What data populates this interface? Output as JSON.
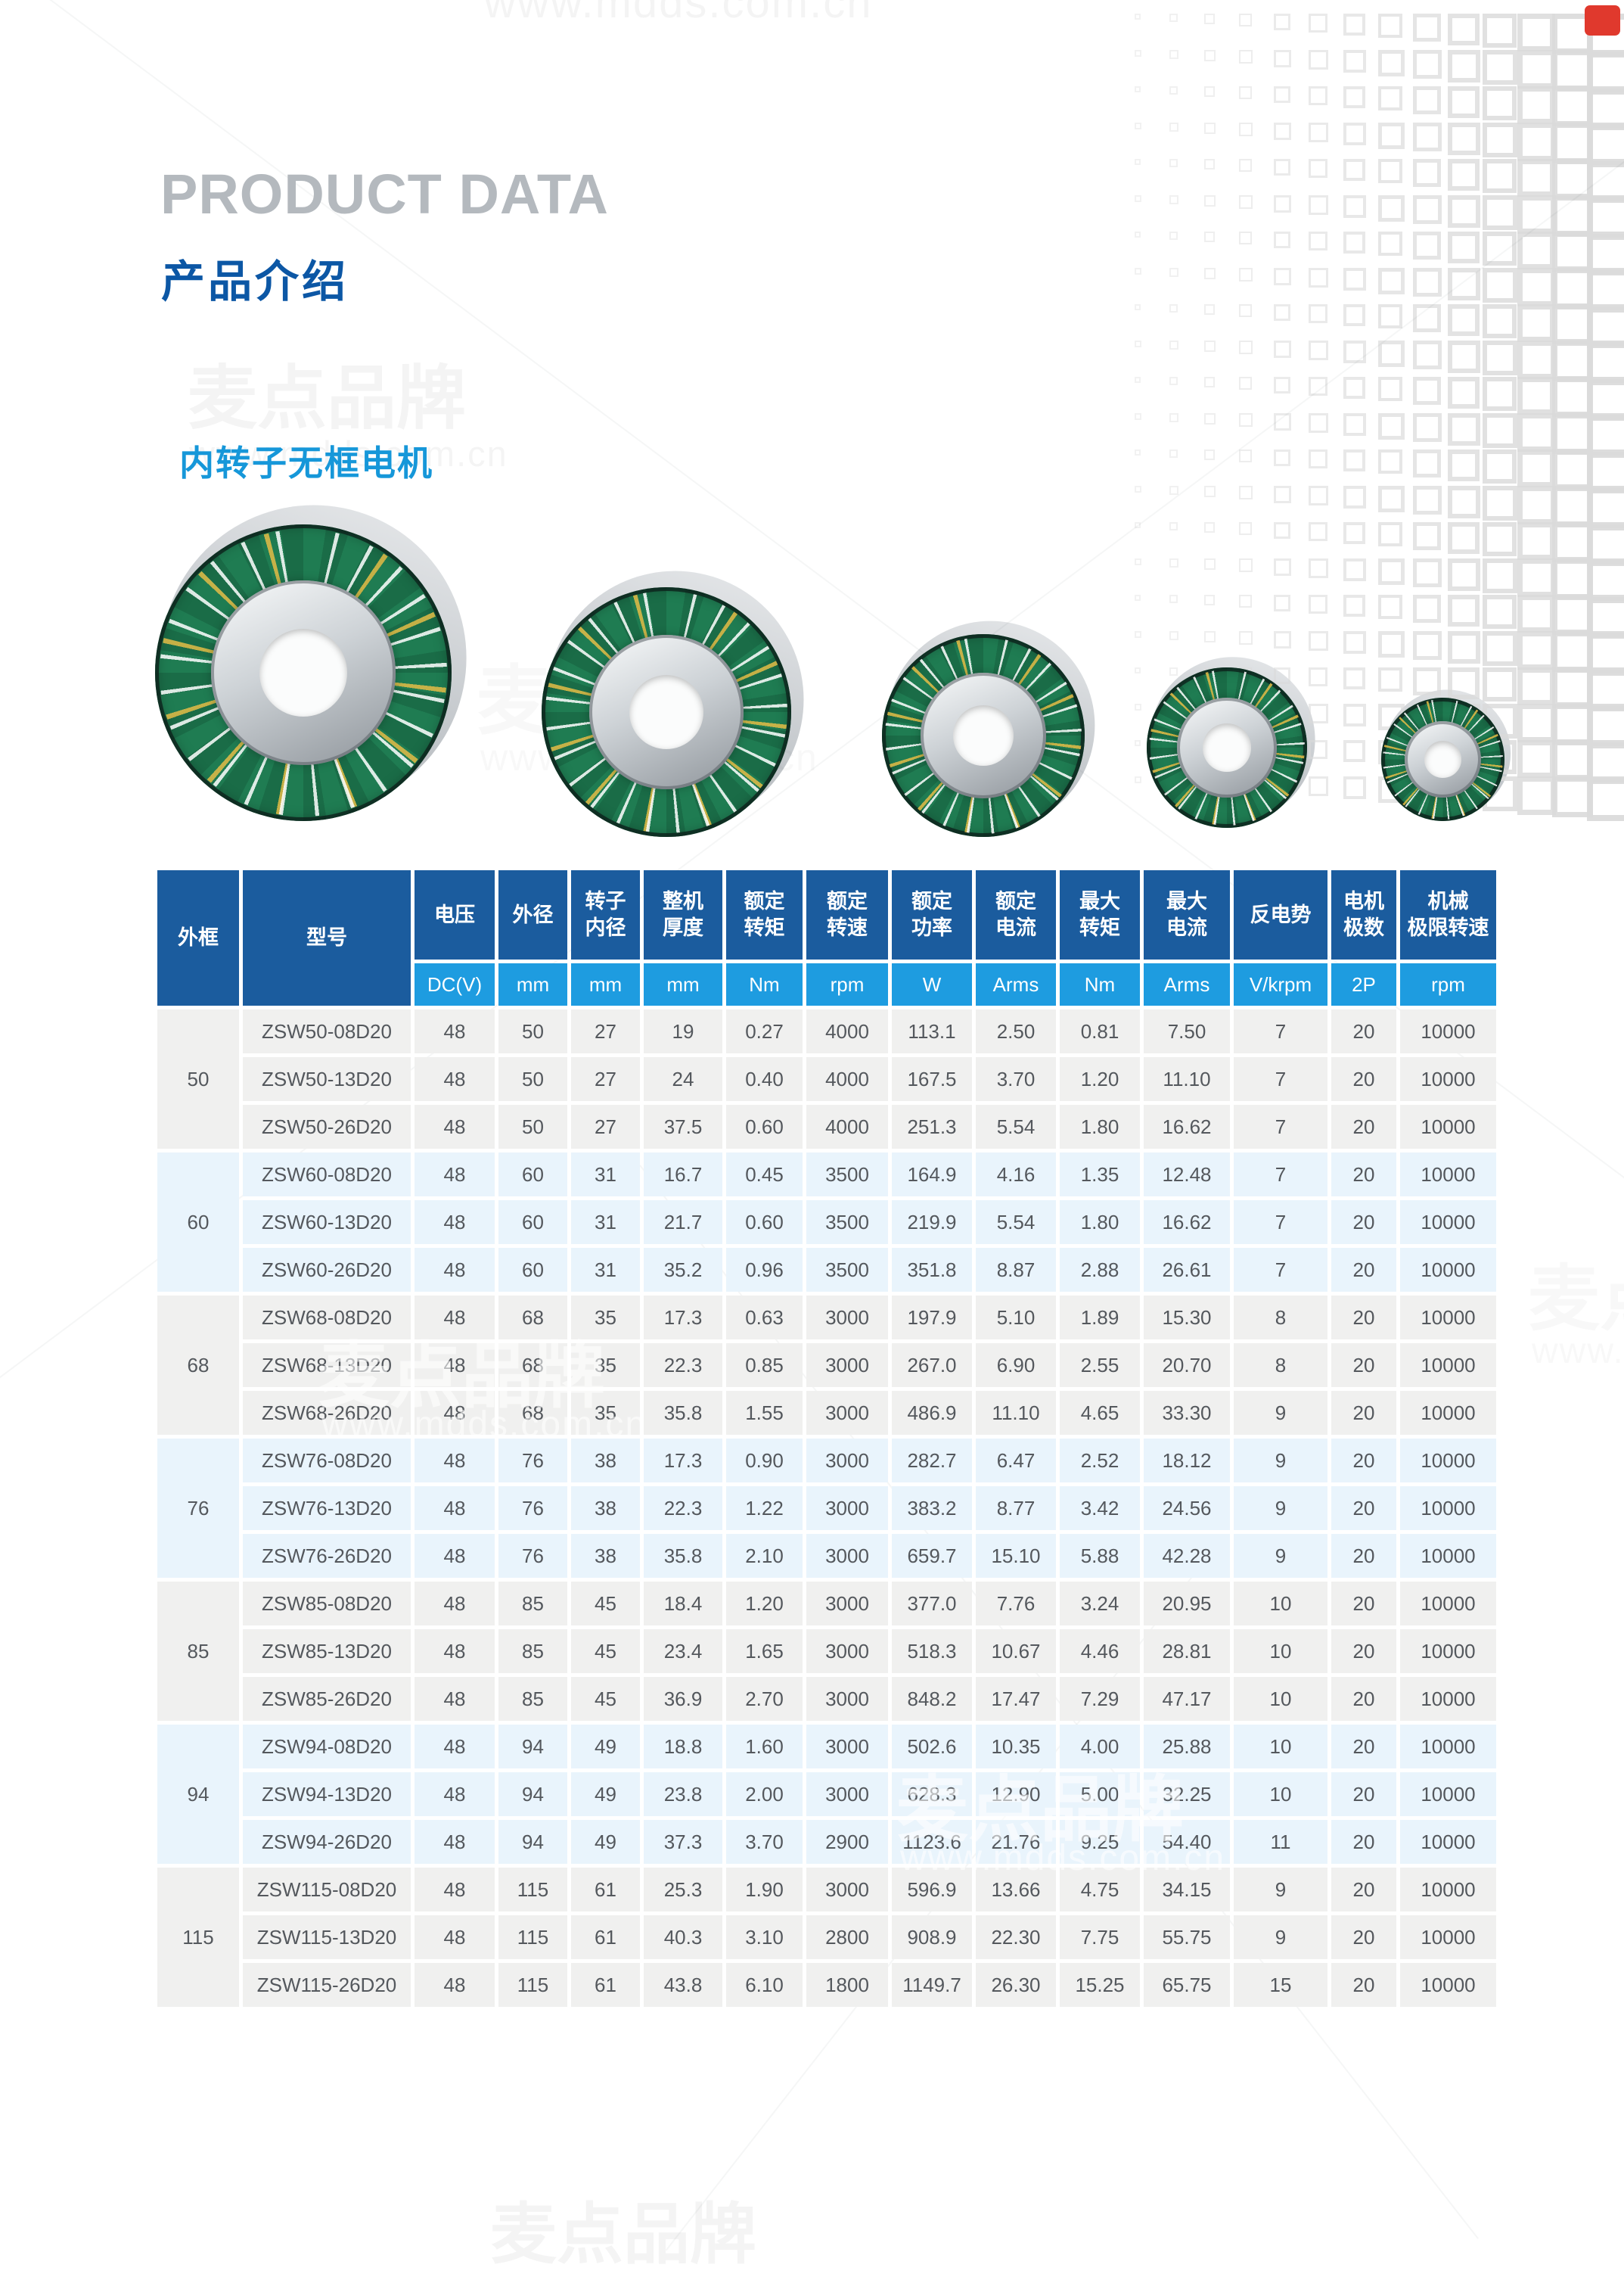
{
  "page": {
    "title_en": "PRODUCT DATA",
    "title_zh": "产品介绍",
    "section_title": "内转子无框电机",
    "watermark_brand": "麦点品牌",
    "watermark_url": "www.mdds.com.cn"
  },
  "colors": {
    "header_dark_blue": "#1b5c9e",
    "header_unit_blue": "#1e9ce0",
    "section_title_blue": "#1697d9",
    "title_zh_blue": "#0c57a5",
    "title_en_gray": "#b4b9be",
    "row_gray": "#f0f0ef",
    "row_light_blue": "#e9f4fc",
    "cell_text": "#54585d",
    "accent_red": "#e0392d",
    "pcb_green": "#1f7c52"
  },
  "table": {
    "header": {
      "col_frame": "外框",
      "col_model": "型号",
      "cols": [
        {
          "label": "电压",
          "unit": "DC(V)"
        },
        {
          "label": "外径",
          "unit": "mm"
        },
        {
          "label": "转子\n内径",
          "unit": "mm"
        },
        {
          "label": "整机\n厚度",
          "unit": "mm"
        },
        {
          "label": "额定\n转矩",
          "unit": "Nm"
        },
        {
          "label": "额定\n转速",
          "unit": "rpm"
        },
        {
          "label": "额定\n功率",
          "unit": "W"
        },
        {
          "label": "额定\n电流",
          "unit": "Arms"
        },
        {
          "label": "最大\n转矩",
          "unit": "Nm"
        },
        {
          "label": "最大\n电流",
          "unit": "Arms"
        },
        {
          "label": "反电势",
          "unit": "V/krpm"
        },
        {
          "label": "电机\n极数",
          "unit": "2P"
        },
        {
          "label": "机械\n极限转速",
          "unit": "rpm"
        }
      ]
    },
    "groups": [
      {
        "frame": "50",
        "rows": [
          {
            "model": "ZSW50-08D20",
            "values": [
              "48",
              "50",
              "27",
              "19",
              "0.27",
              "4000",
              "113.1",
              "2.50",
              "0.81",
              "7.50",
              "7",
              "20",
              "10000"
            ]
          },
          {
            "model": "ZSW50-13D20",
            "values": [
              "48",
              "50",
              "27",
              "24",
              "0.40",
              "4000",
              "167.5",
              "3.70",
              "1.20",
              "11.10",
              "7",
              "20",
              "10000"
            ]
          },
          {
            "model": "ZSW50-26D20",
            "values": [
              "48",
              "50",
              "27",
              "37.5",
              "0.60",
              "4000",
              "251.3",
              "5.54",
              "1.80",
              "16.62",
              "7",
              "20",
              "10000"
            ]
          }
        ]
      },
      {
        "frame": "60",
        "rows": [
          {
            "model": "ZSW60-08D20",
            "values": [
              "48",
              "60",
              "31",
              "16.7",
              "0.45",
              "3500",
              "164.9",
              "4.16",
              "1.35",
              "12.48",
              "7",
              "20",
              "10000"
            ]
          },
          {
            "model": "ZSW60-13D20",
            "values": [
              "48",
              "60",
              "31",
              "21.7",
              "0.60",
              "3500",
              "219.9",
              "5.54",
              "1.80",
              "16.62",
              "7",
              "20",
              "10000"
            ]
          },
          {
            "model": "ZSW60-26D20",
            "values": [
              "48",
              "60",
              "31",
              "35.2",
              "0.96",
              "3500",
              "351.8",
              "8.87",
              "2.88",
              "26.61",
              "7",
              "20",
              "10000"
            ]
          }
        ]
      },
      {
        "frame": "68",
        "rows": [
          {
            "model": "ZSW68-08D20",
            "values": [
              "48",
              "68",
              "35",
              "17.3",
              "0.63",
              "3000",
              "197.9",
              "5.10",
              "1.89",
              "15.30",
              "8",
              "20",
              "10000"
            ]
          },
          {
            "model": "ZSW68-13D20",
            "values": [
              "48",
              "68",
              "35",
              "22.3",
              "0.85",
              "3000",
              "267.0",
              "6.90",
              "2.55",
              "20.70",
              "8",
              "20",
              "10000"
            ]
          },
          {
            "model": "ZSW68-26D20",
            "values": [
              "48",
              "68",
              "35",
              "35.8",
              "1.55",
              "3000",
              "486.9",
              "11.10",
              "4.65",
              "33.30",
              "9",
              "20",
              "10000"
            ]
          }
        ]
      },
      {
        "frame": "76",
        "rows": [
          {
            "model": "ZSW76-08D20",
            "values": [
              "48",
              "76",
              "38",
              "17.3",
              "0.90",
              "3000",
              "282.7",
              "6.47",
              "2.52",
              "18.12",
              "9",
              "20",
              "10000"
            ]
          },
          {
            "model": "ZSW76-13D20",
            "values": [
              "48",
              "76",
              "38",
              "22.3",
              "1.22",
              "3000",
              "383.2",
              "8.77",
              "3.42",
              "24.56",
              "9",
              "20",
              "10000"
            ]
          },
          {
            "model": "ZSW76-26D20",
            "values": [
              "48",
              "76",
              "38",
              "35.8",
              "2.10",
              "3000",
              "659.7",
              "15.10",
              "5.88",
              "42.28",
              "9",
              "20",
              "10000"
            ]
          }
        ]
      },
      {
        "frame": "85",
        "rows": [
          {
            "model": "ZSW85-08D20",
            "values": [
              "48",
              "85",
              "45",
              "18.4",
              "1.20",
              "3000",
              "377.0",
              "7.76",
              "3.24",
              "20.95",
              "10",
              "20",
              "10000"
            ]
          },
          {
            "model": "ZSW85-13D20",
            "values": [
              "48",
              "85",
              "45",
              "23.4",
              "1.65",
              "3000",
              "518.3",
              "10.67",
              "4.46",
              "28.81",
              "10",
              "20",
              "10000"
            ]
          },
          {
            "model": "ZSW85-26D20",
            "values": [
              "48",
              "85",
              "45",
              "36.9",
              "2.70",
              "3000",
              "848.2",
              "17.47",
              "7.29",
              "47.17",
              "10",
              "20",
              "10000"
            ]
          }
        ]
      },
      {
        "frame": "94",
        "rows": [
          {
            "model": "ZSW94-08D20",
            "values": [
              "48",
              "94",
              "49",
              "18.8",
              "1.60",
              "3000",
              "502.6",
              "10.35",
              "4.00",
              "25.88",
              "10",
              "20",
              "10000"
            ]
          },
          {
            "model": "ZSW94-13D20",
            "values": [
              "48",
              "94",
              "49",
              "23.8",
              "2.00",
              "3000",
              "628.3",
              "12.90",
              "5.00",
              "32.25",
              "10",
              "20",
              "10000"
            ]
          },
          {
            "model": "ZSW94-26D20",
            "values": [
              "48",
              "94",
              "49",
              "37.3",
              "3.70",
              "2900",
              "1123.6",
              "21.76",
              "9.25",
              "54.40",
              "11",
              "20",
              "10000"
            ]
          }
        ]
      },
      {
        "frame": "115",
        "rows": [
          {
            "model": "ZSW115-08D20",
            "values": [
              "48",
              "115",
              "61",
              "25.3",
              "1.90",
              "3000",
              "596.9",
              "13.66",
              "4.75",
              "34.15",
              "9",
              "20",
              "10000"
            ]
          },
          {
            "model": "ZSW115-13D20",
            "values": [
              "48",
              "115",
              "61",
              "40.3",
              "3.10",
              "2800",
              "908.9",
              "22.30",
              "7.75",
              "55.75",
              "9",
              "20",
              "10000"
            ]
          },
          {
            "model": "ZSW115-26D20",
            "values": [
              "48",
              "115",
              "61",
              "43.8",
              "6.10",
              "1800",
              "1149.7",
              "26.30",
              "15.25",
              "65.75",
              "15",
              "20",
              "10000"
            ]
          }
        ]
      }
    ]
  }
}
